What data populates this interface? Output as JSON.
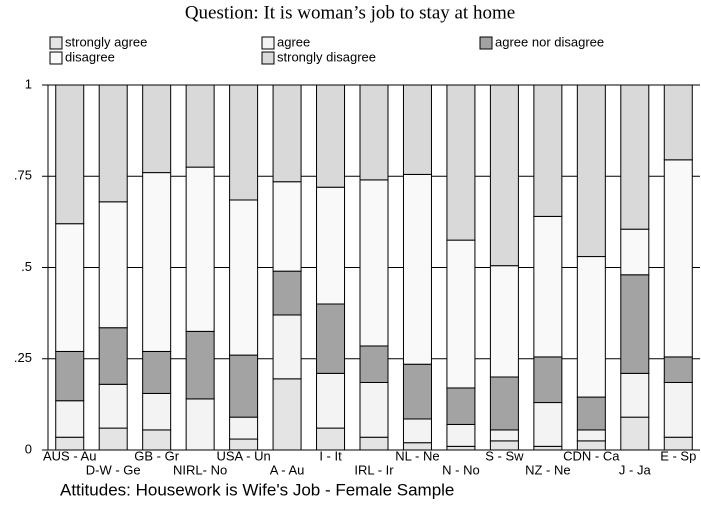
{
  "chart_data": {
    "type": "stacked_bar",
    "title": "Question: It is woman’s job to stay at home",
    "caption": "Attitudes: Housework is Wife's Job - Female Sample",
    "categories": [
      "AUS - Au",
      "D-W - Ge",
      "GB - Gr",
      "NIRL- No",
      "USA - Un",
      "A - Au",
      "I - It",
      "IRL - Ir",
      "NL - Ne",
      "N - No",
      "S - Sw",
      "NZ - Ne",
      "CDN - Ca",
      "J - Ja",
      "E - Sp"
    ],
    "series": [
      {
        "name": "strongly agree",
        "color": "#e4e4e4",
        "values": [
          0.035,
          0.06,
          0.055,
          0,
          0.03,
          0.195,
          0.06,
          0.035,
          0.02,
          0.01,
          0.025,
          0.01,
          0.025,
          0.09,
          0.035
        ]
      },
      {
        "name": "agree",
        "color": "#f3f3f3",
        "values": [
          0.1,
          0.12,
          0.1,
          0.14,
          0.06,
          0.175,
          0.15,
          0.15,
          0.065,
          0.06,
          0.03,
          0.12,
          0.03,
          0.12,
          0.15
        ]
      },
      {
        "name": "agree nor disagree",
        "color": "#a3a3a3",
        "values": [
          0.135,
          0.155,
          0.115,
          0.185,
          0.17,
          0.12,
          0.19,
          0.1,
          0.15,
          0.1,
          0.145,
          0.125,
          0.09,
          0.27,
          0.07
        ]
      },
      {
        "name": "disagree",
        "color": "#f9f9f9",
        "values": [
          0.35,
          0.345,
          0.49,
          0.45,
          0.425,
          0.245,
          0.32,
          0.455,
          0.52,
          0.405,
          0.305,
          0.385,
          0.385,
          0.125,
          0.54
        ]
      },
      {
        "name": "strongly disagree",
        "color": "#d9d9d9",
        "values": [
          0.38,
          0.32,
          0.24,
          0.225,
          0.315,
          0.265,
          0.28,
          0.26,
          0.245,
          0.425,
          0.495,
          0.36,
          0.47,
          0.395,
          0.205
        ]
      }
    ],
    "ylim": [
      0,
      1
    ],
    "yticks": [
      0,
      {
        "value": 0.25,
        "label": ".25"
      },
      {
        "value": 0.5,
        "label": ".5"
      },
      {
        "value": 0.75,
        "label": ".75"
      },
      1
    ],
    "grid": true
  }
}
